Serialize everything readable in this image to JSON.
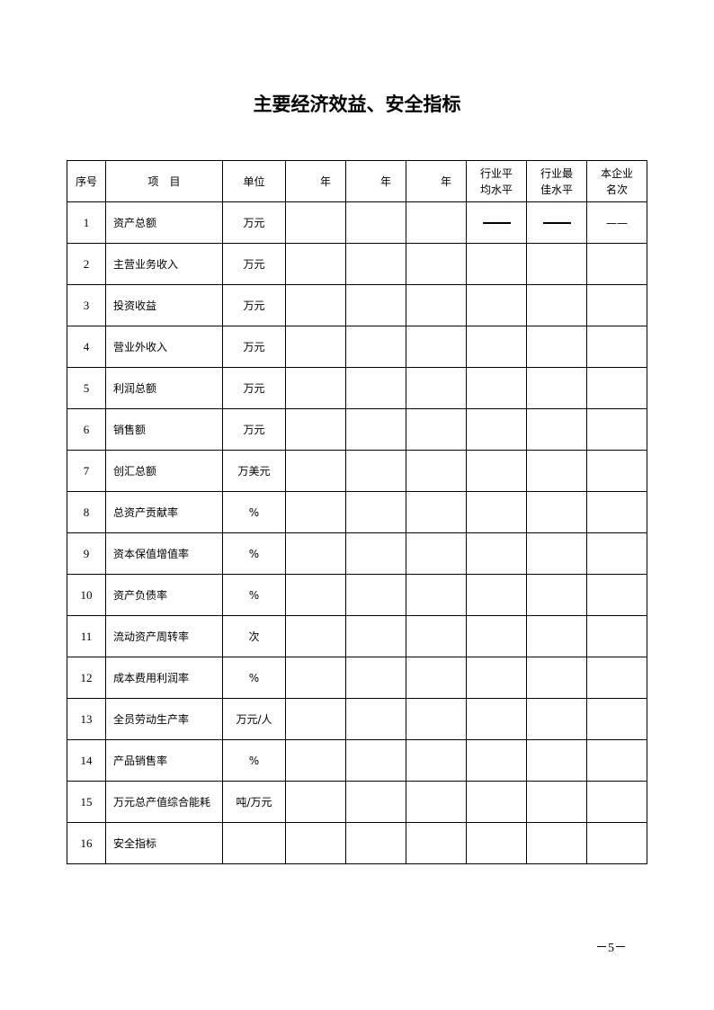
{
  "title": "主要经济效益、安全指标",
  "table": {
    "headers": [
      "序号",
      "项　目",
      "单位",
      "年",
      "年",
      "年",
      "行业平均水平",
      "行业最佳水平",
      "本企业名次"
    ],
    "header_lines": {
      "avg": [
        "行业平",
        "均水平"
      ],
      "best": [
        "行业最",
        "佳水平"
      ],
      "rank": [
        "本企业",
        "名次"
      ]
    },
    "rows": [
      {
        "no": "1",
        "item": "资产总额",
        "unit": "万元",
        "rank": "——"
      },
      {
        "no": "2",
        "item": "主营业务收入",
        "unit": "万元"
      },
      {
        "no": "3",
        "item": "投资收益",
        "unit": "万元"
      },
      {
        "no": "4",
        "item": "营业外收入",
        "unit": "万元"
      },
      {
        "no": "5",
        "item": "利润总额",
        "unit": "万元"
      },
      {
        "no": "6",
        "item": "销售额",
        "unit": "万元"
      },
      {
        "no": "7",
        "item": "创汇总额",
        "unit": "万美元"
      },
      {
        "no": "8",
        "item": "总资产贡献率",
        "unit": "%"
      },
      {
        "no": "9",
        "item": "资本保值增值率",
        "unit": "%"
      },
      {
        "no": "10",
        "item": "资产负债率",
        "unit": "%"
      },
      {
        "no": "11",
        "item": "流动资产周转率",
        "unit": "次"
      },
      {
        "no": "12",
        "item": "成本费用利润率",
        "unit": "%"
      },
      {
        "no": "13",
        "item": "全员劳动生产率",
        "unit": "万元/人"
      },
      {
        "no": "14",
        "item": "产品销售率",
        "unit": "%"
      },
      {
        "no": "15",
        "item": "万元总产值综合能耗",
        "unit": "吨/万元"
      },
      {
        "no": "16",
        "item": "安全指标",
        "unit": ""
      }
    ]
  },
  "page_number": "－5－"
}
